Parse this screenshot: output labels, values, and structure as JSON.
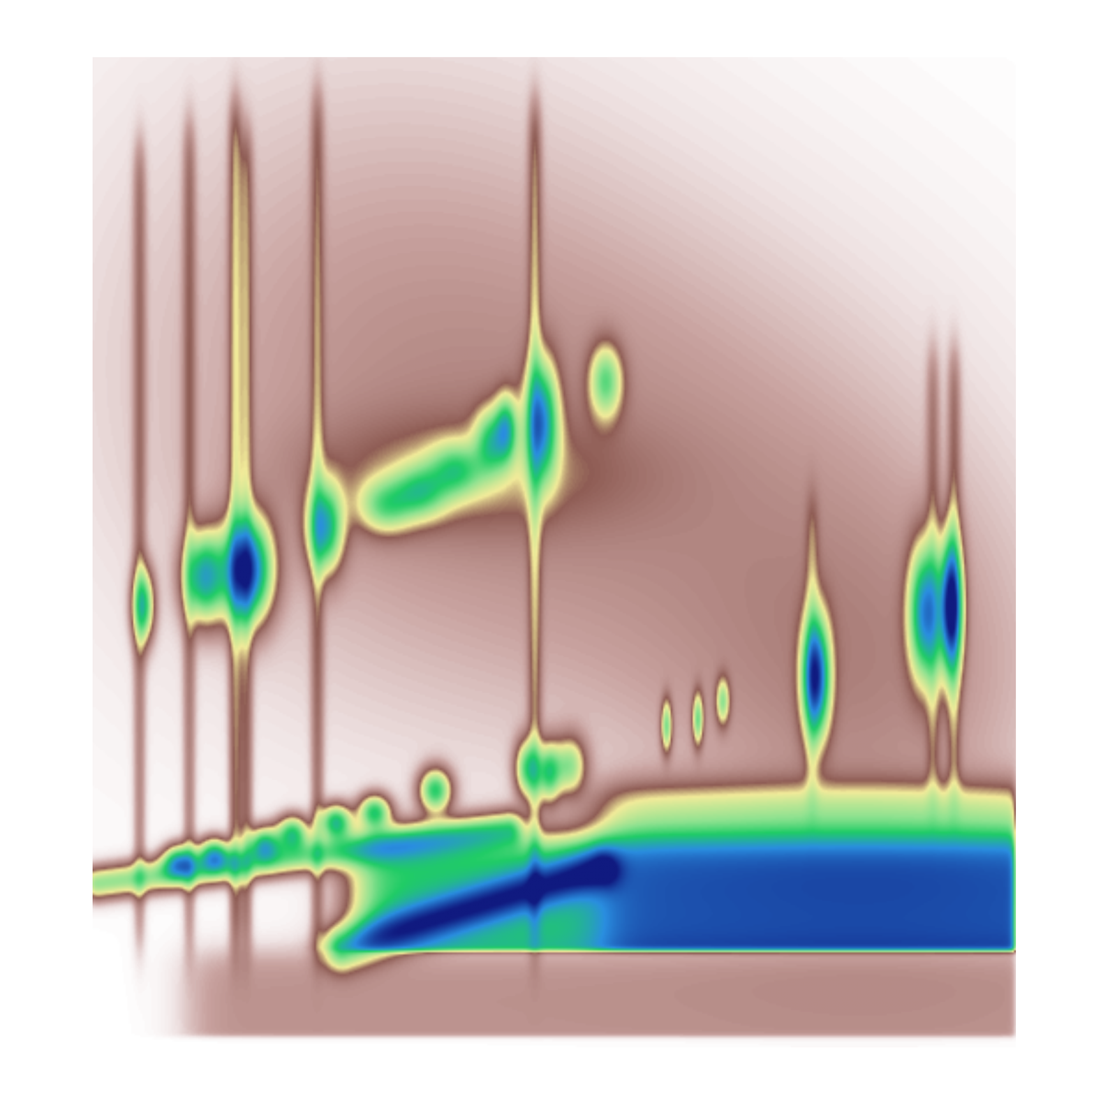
{
  "chart_data": {
    "type": "heatmap",
    "tick_labels": false,
    "xlim": [
      0,
      100
    ],
    "ylim": [
      0,
      100
    ],
    "value_range": [
      0,
      10
    ],
    "spots": [
      {
        "x": 5.4,
        "y": 44.6,
        "sx": 0.8,
        "sy": 2.5,
        "value": 5
      },
      {
        "x": 12.0,
        "y": 47.5,
        "sx": 1.5,
        "sy": 3.0,
        "value": 6
      },
      {
        "x": 16.6,
        "y": 48.2,
        "sx": 1.8,
        "sy": 3.5,
        "value": 8.5
      },
      {
        "x": 25.1,
        "y": 52.5,
        "sx": 1.3,
        "sy": 3.0,
        "value": 5.5
      },
      {
        "x": 31.7,
        "y": 54.7,
        "sx": 2.0,
        "sy": 1.8,
        "value": 3
      },
      {
        "x": 35.5,
        "y": 56.1,
        "sx": 2.0,
        "sy": 1.8,
        "value": 3.2
      },
      {
        "x": 39.4,
        "y": 58.3,
        "sx": 2.0,
        "sy": 1.8,
        "value": 3
      },
      {
        "x": 43.2,
        "y": 61.2,
        "sx": 1.2,
        "sy": 2.2,
        "value": 3.5
      },
      {
        "x": 44.8,
        "y": 62.6,
        "sx": 0.8,
        "sy": 2.2,
        "value": 4
      },
      {
        "x": 48.6,
        "y": 63.3,
        "sx": 1.2,
        "sy": 4.0,
        "value": 6
      },
      {
        "x": 55.6,
        "y": 67.3,
        "sx": 1.2,
        "sy": 2.5,
        "value": 3.5
      },
      {
        "x": 78.4,
        "y": 37.4,
        "sx": 1.0,
        "sy": 4.0,
        "value": 8
      },
      {
        "x": 90.3,
        "y": 43.9,
        "sx": 1.2,
        "sy": 4.5,
        "value": 6.5
      },
      {
        "x": 93.1,
        "y": 44.6,
        "sx": 0.8,
        "sy": 4.5,
        "value": 9
      },
      {
        "x": 62.2,
        "y": 32.4,
        "sx": 0.4,
        "sy": 1.8,
        "value": 3.5
      },
      {
        "x": 65.6,
        "y": 33.1,
        "sx": 0.4,
        "sy": 1.8,
        "value": 3.5
      },
      {
        "x": 68.3,
        "y": 34.9,
        "sx": 0.5,
        "sy": 1.6,
        "value": 3
      },
      {
        "x": 47.1,
        "y": 28.1,
        "sx": 0.9,
        "sy": 2.0,
        "value": 4.5
      },
      {
        "x": 49.4,
        "y": 27.7,
        "sx": 0.9,
        "sy": 2.0,
        "value": 4.5
      },
      {
        "x": 51.7,
        "y": 28.4,
        "sx": 1.2,
        "sy": 2.0,
        "value": 3.5
      },
      {
        "x": 9.3,
        "y": 18.7,
        "sx": 1.2,
        "sy": 1.2,
        "value": 5
      },
      {
        "x": 13.1,
        "y": 19.4,
        "sx": 1.2,
        "sy": 1.2,
        "value": 5
      },
      {
        "x": 18.5,
        "y": 20.5,
        "sx": 1.2,
        "sy": 1.2,
        "value": 5
      },
      {
        "x": 21.6,
        "y": 21.6,
        "sx": 1.2,
        "sy": 1.2,
        "value": 5
      },
      {
        "x": 26.3,
        "y": 22.7,
        "sx": 1.2,
        "sy": 1.2,
        "value": 5.5
      },
      {
        "x": 30.5,
        "y": 23.7,
        "sx": 1.2,
        "sy": 1.2,
        "value": 5
      },
      {
        "x": 37.1,
        "y": 25.9,
        "sx": 1.2,
        "sy": 1.5,
        "value": 5
      },
      {
        "x": 30,
        "y": 70,
        "sx": 25,
        "sy": 25,
        "value": 1.0
      },
      {
        "x": 65,
        "y": 55,
        "sx": 25,
        "sy": 20,
        "value": 0.9
      },
      {
        "x": 85,
        "y": 35,
        "sx": 15,
        "sy": 15,
        "value": 1.0
      },
      {
        "x": 40,
        "y": 58,
        "sx": 12,
        "sy": 4,
        "value": 1.2
      }
    ],
    "streaks": [
      {
        "x": 5.0,
        "y0": 10,
        "y1": 91,
        "width": 0.5,
        "value": 1.2
      },
      {
        "x": 10.4,
        "y0": 10,
        "y1": 93,
        "width": 0.5,
        "value": 1.2
      },
      {
        "x": 15.4,
        "y0": 10,
        "y1": 95,
        "width": 0.5,
        "value": 1.8
      },
      {
        "x": 16.6,
        "y0": 10,
        "y1": 92,
        "width": 0.5,
        "value": 1.5
      },
      {
        "x": 24.3,
        "y0": 10,
        "y1": 96,
        "width": 0.5,
        "value": 1.3
      },
      {
        "x": 47.9,
        "y0": 10,
        "y1": 95,
        "width": 0.5,
        "value": 1.5
      },
      {
        "x": 78.0,
        "y0": 25,
        "y1": 55,
        "width": 0.5,
        "value": 1.0
      },
      {
        "x": 91.1,
        "y0": 25,
        "y1": 70,
        "width": 0.5,
        "value": 1.0
      },
      {
        "x": 93.4,
        "y0": 25,
        "y1": 70,
        "width": 0.5,
        "value": 1.2
      }
    ],
    "ridges": [
      {
        "x0": 0.5,
        "y0": 16.5,
        "x1": 45,
        "y1": 22,
        "width": 1.2,
        "value": 4
      },
      {
        "x0": 27,
        "y0": 10,
        "x1": 55,
        "y1": 18,
        "width": 1.5,
        "value": 4.5
      }
    ],
    "regions": [
      {
        "x0": 28.6,
        "x1": 100,
        "y0": 9.7,
        "y1": 20.9,
        "value": 5.5
      },
      {
        "x0": 55,
        "x1": 100,
        "y0": 9.7,
        "y1": 26,
        "value": 3
      },
      {
        "x0": 10,
        "x1": 100,
        "y0": 1,
        "y1": 9.7,
        "value": 1.2
      }
    ]
  }
}
